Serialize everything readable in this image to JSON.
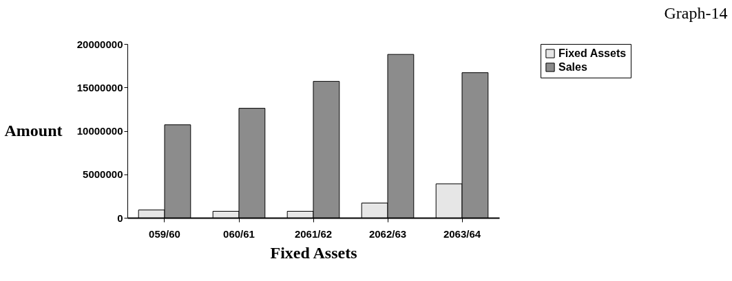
{
  "chart_data": {
    "type": "bar",
    "title": "Graph-14",
    "xlabel": "Fixed Assets",
    "ylabel": "Amount",
    "categories": [
      "059/60",
      "060/61",
      "2061/62",
      "2062/63",
      "2063/64"
    ],
    "series": [
      {
        "name": "Fixed Assets",
        "color": "#e6e6e6",
        "values": [
          900000,
          750000,
          750000,
          1700000,
          3900000
        ]
      },
      {
        "name": "Sales",
        "color": "#8c8c8c",
        "values": [
          10700000,
          12600000,
          15700000,
          18800000,
          16700000
        ]
      }
    ],
    "ylim": [
      0,
      20000000
    ],
    "yticks": [
      0,
      5000000,
      10000000,
      15000000,
      20000000
    ],
    "grid": false,
    "legend": "right"
  }
}
